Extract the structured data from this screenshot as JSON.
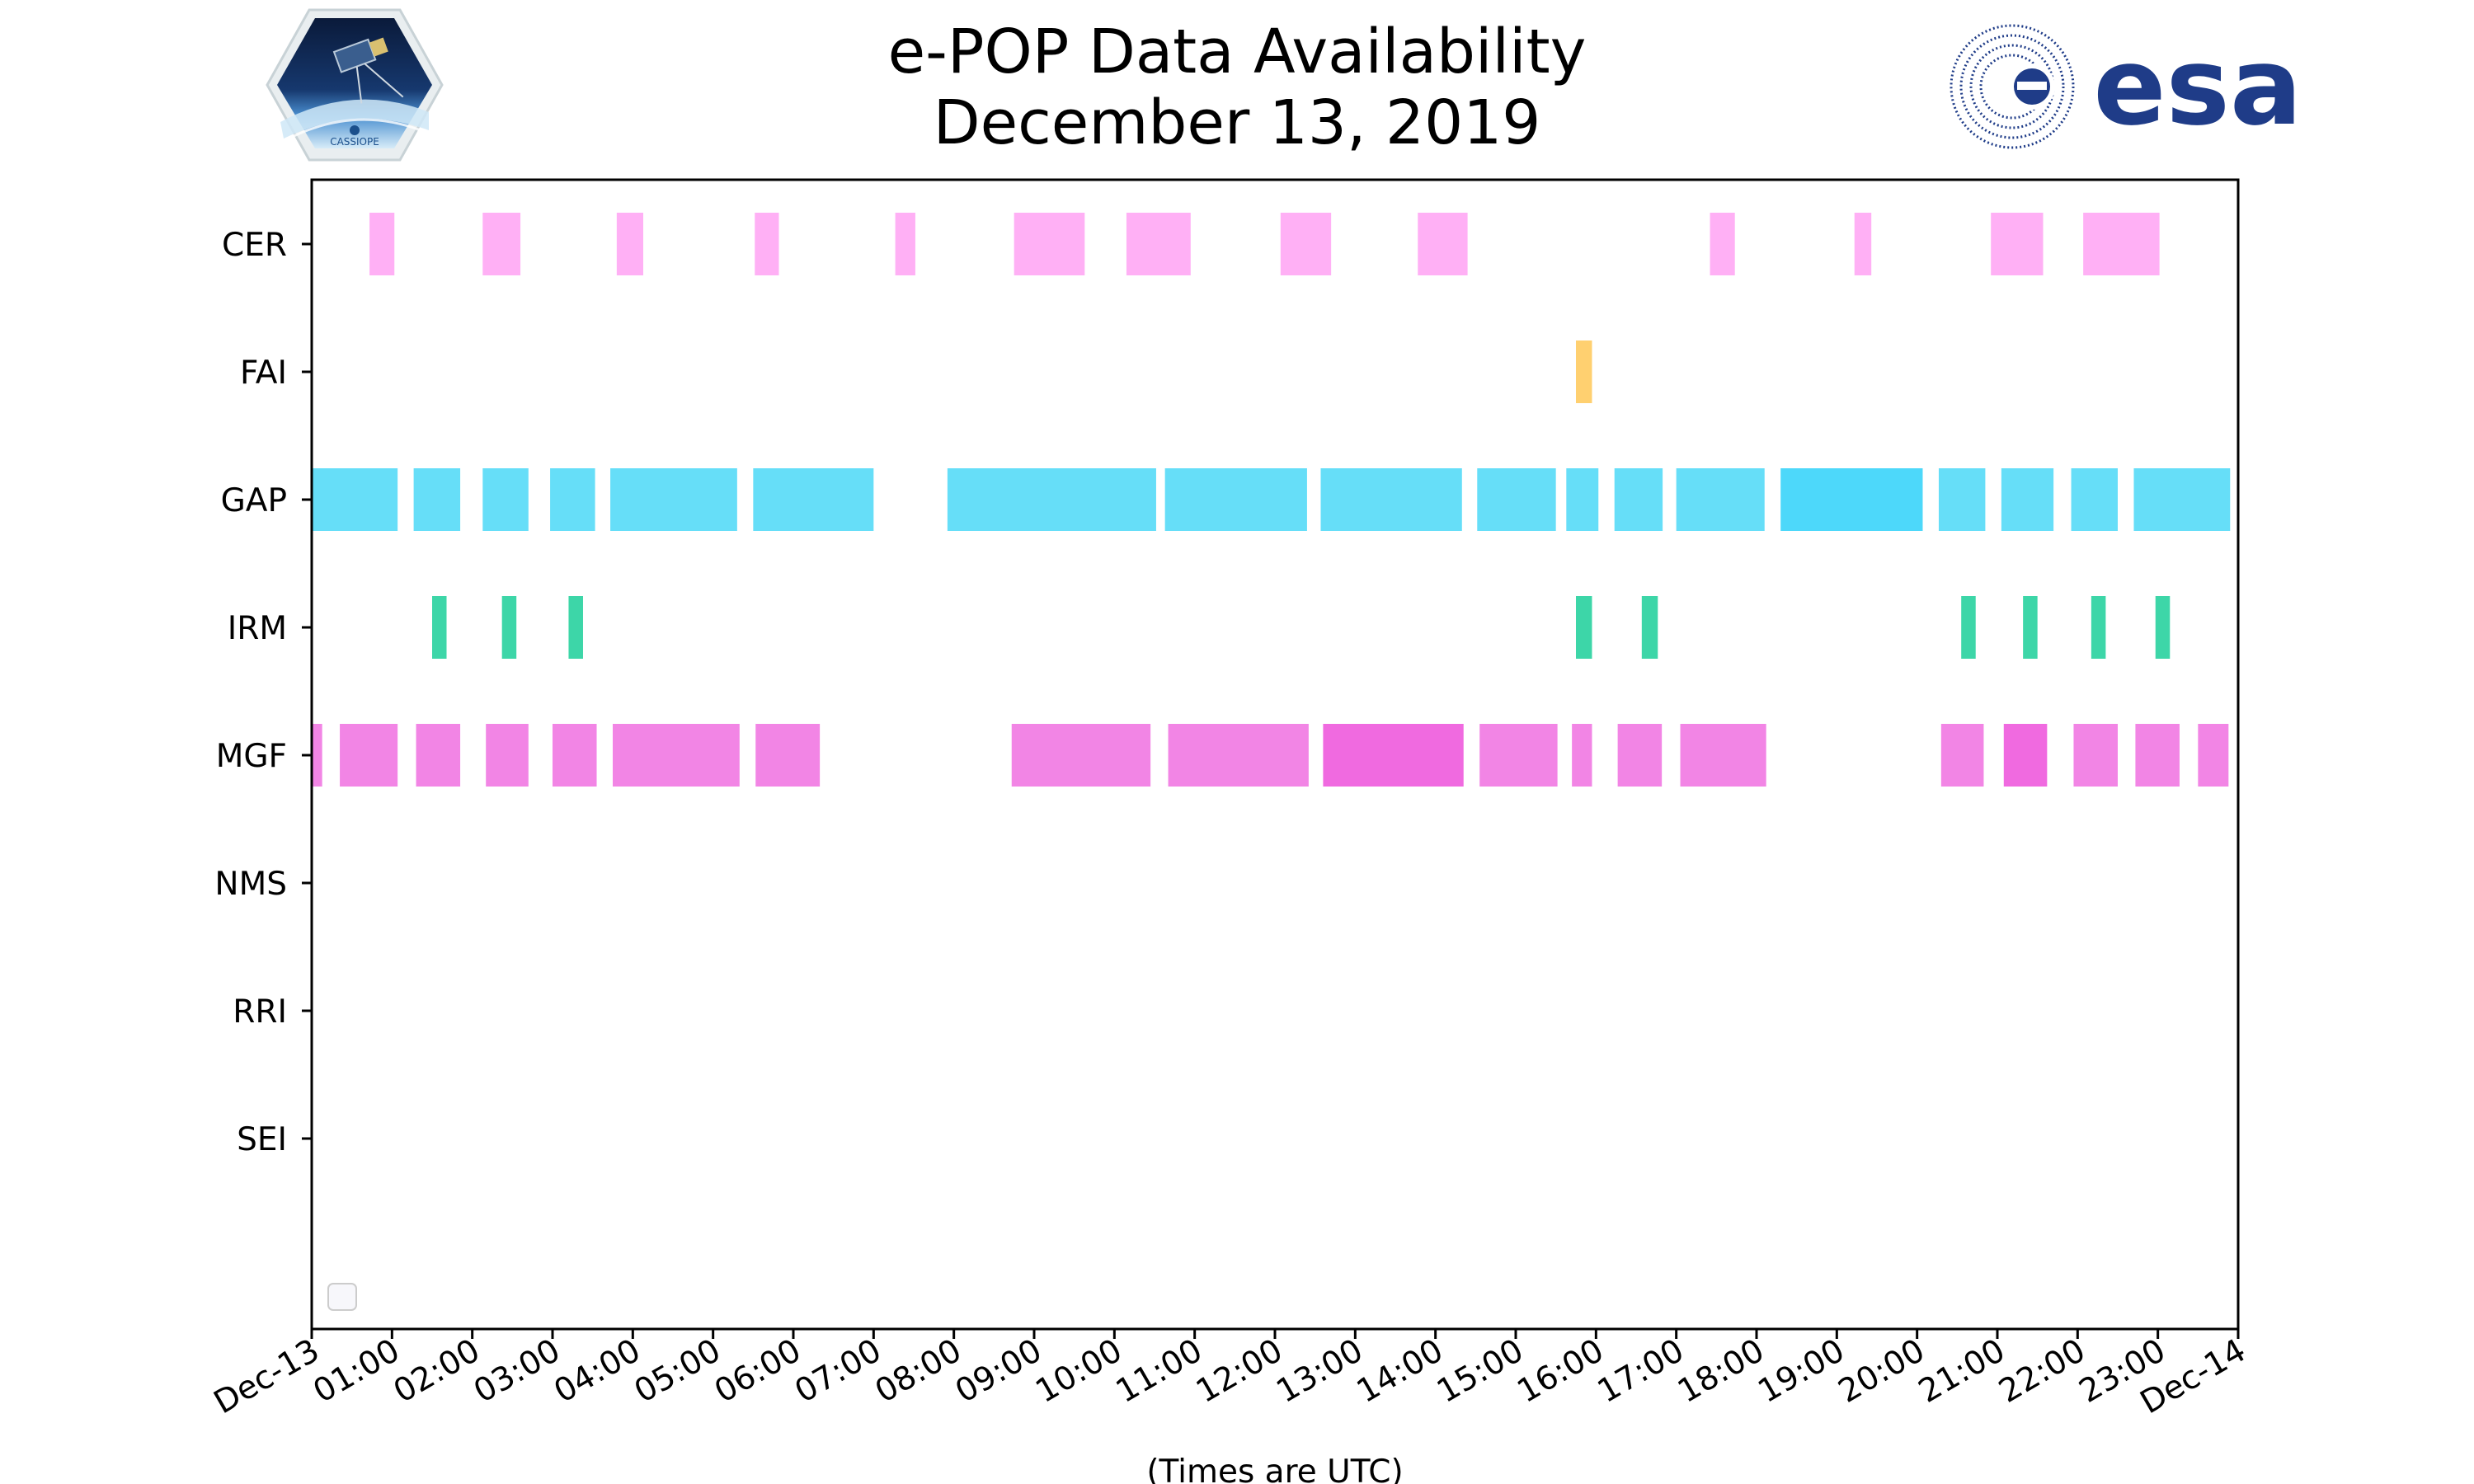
{
  "header": {
    "title_line1": "e-POP Data Availability",
    "title_line2": "December 13, 2019"
  },
  "logos": {
    "left_logo_text": "CASSIOPE",
    "right_logo_text": "esa"
  },
  "chart_data": {
    "type": "timeline",
    "title": "e-POP Data Availability December 13, 2019",
    "xlabel": "(Times are UTC)",
    "ylabel": "",
    "xlim_hours": [
      0,
      24
    ],
    "x_tick_labels": [
      "Dec-13",
      "01:00",
      "02:00",
      "03:00",
      "04:00",
      "05:00",
      "06:00",
      "07:00",
      "08:00",
      "09:00",
      "10:00",
      "11:00",
      "12:00",
      "13:00",
      "14:00",
      "15:00",
      "16:00",
      "17:00",
      "18:00",
      "19:00",
      "20:00",
      "21:00",
      "22:00",
      "23:00",
      "Dec-14"
    ],
    "categories": [
      "CER",
      "FAI",
      "GAP",
      "IRM",
      "MGF",
      "NMS",
      "RRI",
      "SEI"
    ],
    "colors": {
      "CER": "#ffb0f5",
      "FAI": "#ffd070",
      "GAP": "#66def8",
      "GAP_dark": "#4dd8fa",
      "IRM": "#3dd6a8",
      "MGF": "#f285e5",
      "MGF_dark": "#f06ae0"
    },
    "series": [
      {
        "name": "CER",
        "intervals_hours": [
          [
            0.72,
            1.03
          ],
          [
            2.13,
            2.6
          ],
          [
            3.8,
            4.13
          ],
          [
            5.52,
            5.82
          ],
          [
            7.27,
            7.52
          ],
          [
            8.75,
            9.63
          ],
          [
            10.15,
            10.95
          ],
          [
            12.07,
            12.7
          ],
          [
            13.78,
            14.4
          ],
          [
            17.42,
            17.73
          ],
          [
            19.22,
            19.43
          ],
          [
            20.92,
            21.57
          ],
          [
            22.07,
            23.02
          ]
        ]
      },
      {
        "name": "FAI",
        "intervals_hours": [
          [
            15.75,
            15.95
          ]
        ]
      },
      {
        "name": "GAP",
        "intervals_hours": [
          [
            0.0,
            1.07
          ],
          [
            1.27,
            1.85
          ],
          [
            2.13,
            2.7
          ],
          [
            2.97,
            3.53
          ],
          [
            3.72,
            5.3
          ],
          [
            5.5,
            7.0
          ],
          [
            7.92,
            10.52
          ],
          [
            10.63,
            12.4
          ],
          [
            12.57,
            14.33
          ],
          [
            14.52,
            15.5
          ],
          [
            15.63,
            16.03
          ],
          [
            16.23,
            16.83
          ],
          [
            17.0,
            18.1
          ],
          [
            18.3,
            20.07,
            "dark"
          ],
          [
            20.27,
            20.85
          ],
          [
            21.05,
            21.7
          ],
          [
            21.92,
            22.5
          ],
          [
            22.7,
            23.9
          ]
        ]
      },
      {
        "name": "IRM",
        "intervals_hours": [
          [
            1.5,
            1.68
          ],
          [
            2.37,
            2.55
          ],
          [
            3.2,
            3.38
          ],
          [
            15.75,
            15.95
          ],
          [
            16.57,
            16.77
          ],
          [
            20.55,
            20.73
          ],
          [
            21.32,
            21.5
          ],
          [
            22.17,
            22.35
          ],
          [
            22.97,
            23.15
          ]
        ]
      },
      {
        "name": "MGF",
        "intervals_hours": [
          [
            0.0,
            0.13
          ],
          [
            0.35,
            1.07
          ],
          [
            1.3,
            1.85
          ],
          [
            2.17,
            2.7
          ],
          [
            3.0,
            3.55
          ],
          [
            3.75,
            5.33
          ],
          [
            5.53,
            6.33
          ],
          [
            8.72,
            10.45
          ],
          [
            10.67,
            12.42
          ],
          [
            12.6,
            14.35,
            "dark"
          ],
          [
            14.55,
            15.52
          ],
          [
            15.7,
            15.95
          ],
          [
            16.27,
            16.82
          ],
          [
            17.05,
            18.12
          ],
          [
            20.3,
            20.83
          ],
          [
            21.08,
            21.62,
            "dark"
          ],
          [
            21.95,
            22.5
          ],
          [
            22.72,
            23.27
          ],
          [
            23.5,
            23.88
          ]
        ]
      },
      {
        "name": "NMS",
        "intervals_hours": []
      },
      {
        "name": "RRI",
        "intervals_hours": []
      },
      {
        "name": "SEI",
        "intervals_hours": []
      }
    ],
    "legend": "lower-left (empty)"
  }
}
